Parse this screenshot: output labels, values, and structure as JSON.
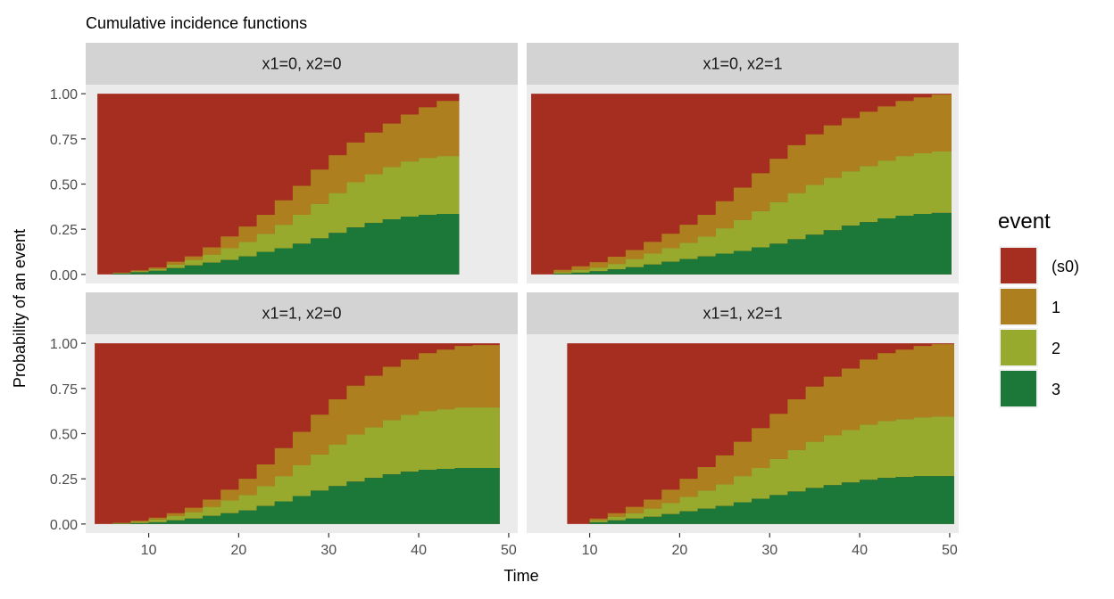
{
  "chart_data": {
    "type": "area",
    "stacked": true,
    "title": "Cumulative incidence functions",
    "xlabel": "Time",
    "ylabel": "Probability of an event",
    "xlim": [
      3,
      51
    ],
    "ylim": [
      -0.05,
      1.05
    ],
    "x_ticks": [
      10,
      20,
      30,
      40,
      50
    ],
    "y_ticks": [
      0,
      0.25,
      0.5,
      0.75,
      1
    ],
    "y_tick_labels": [
      "0.00",
      "0.25",
      "0.50",
      "0.75",
      "1.00"
    ],
    "grid": false,
    "legend": {
      "title": "event",
      "position": "right",
      "items": [
        {
          "label": "(s0)",
          "color": "#A52E20"
        },
        {
          "label": "1",
          "color": "#AD7F1E"
        },
        {
          "label": "2",
          "color": "#98AA2E"
        },
        {
          "label": "3",
          "color": "#1C7838"
        }
      ]
    },
    "stack_order_top_to_bottom": [
      "(s0)",
      "1",
      "2",
      "3"
    ],
    "panels": [
      {
        "label": "x1=0, x2=0",
        "x": [
          4.3,
          6,
          8,
          10,
          12,
          14,
          16,
          18,
          20,
          22,
          24,
          26,
          28,
          30,
          32,
          34,
          36,
          38,
          40,
          42,
          44.5
        ],
        "series": [
          {
            "name": "3",
            "values": [
              0,
              0.005,
              0.012,
              0.02,
              0.035,
              0.05,
              0.065,
              0.08,
              0.1,
              0.125,
              0.145,
              0.17,
              0.2,
              0.23,
              0.26,
              0.285,
              0.305,
              0.32,
              0.33,
              0.335,
              0.34
            ]
          },
          {
            "name": "2",
            "values": [
              0,
              0.003,
              0.006,
              0.01,
              0.02,
              0.03,
              0.045,
              0.065,
              0.08,
              0.1,
              0.13,
              0.16,
              0.19,
              0.22,
              0.25,
              0.27,
              0.29,
              0.305,
              0.315,
              0.32,
              0.33
            ]
          },
          {
            "name": "1",
            "values": [
              0,
              0.002,
              0.004,
              0.008,
              0.015,
              0.02,
              0.04,
              0.065,
              0.085,
              0.105,
              0.135,
              0.16,
              0.19,
              0.21,
              0.22,
              0.23,
              0.24,
              0.26,
              0.28,
              0.305,
              0.32
            ]
          }
        ]
      },
      {
        "label": "x1=0, x2=1",
        "x": [
          3.5,
          6,
          8,
          10,
          12,
          14,
          16,
          18,
          20,
          22,
          24,
          26,
          28,
          30,
          32,
          34,
          36,
          38,
          40,
          42,
          44,
          46,
          48,
          50.2
        ],
        "series": [
          {
            "name": "3",
            "values": [
              0,
              0.005,
              0.01,
              0.018,
              0.028,
              0.04,
              0.055,
              0.07,
              0.085,
              0.1,
              0.115,
              0.13,
              0.15,
              0.17,
              0.195,
              0.22,
              0.245,
              0.27,
              0.29,
              0.31,
              0.325,
              0.335,
              0.34,
              0.34
            ]
          },
          {
            "name": "2",
            "values": [
              0,
              0.008,
              0.015,
              0.02,
              0.03,
              0.045,
              0.06,
              0.075,
              0.09,
              0.11,
              0.14,
              0.17,
              0.2,
              0.23,
              0.255,
              0.275,
              0.29,
              0.3,
              0.31,
              0.32,
              0.33,
              0.335,
              0.34,
              0.34
            ]
          },
          {
            "name": "1",
            "values": [
              0,
              0.012,
              0.02,
              0.03,
              0.04,
              0.05,
              0.065,
              0.08,
              0.1,
              0.12,
              0.15,
              0.18,
              0.21,
              0.24,
              0.265,
              0.28,
              0.29,
              0.295,
              0.3,
              0.3,
              0.305,
              0.31,
              0.315,
              0.32
            ]
          }
        ]
      },
      {
        "label": "x1=1, x2=0",
        "x": [
          4,
          6,
          8,
          10,
          12,
          14,
          16,
          18,
          20,
          22,
          24,
          26,
          28,
          30,
          32,
          34,
          36,
          38,
          40,
          42,
          44,
          46,
          49
        ],
        "series": [
          {
            "name": "3",
            "values": [
              0,
              0.002,
              0.005,
              0.01,
              0.02,
              0.03,
              0.045,
              0.06,
              0.075,
              0.1,
              0.125,
              0.155,
              0.185,
              0.21,
              0.235,
              0.255,
              0.275,
              0.29,
              0.3,
              0.305,
              0.31,
              0.31,
              0.31
            ]
          },
          {
            "name": "2",
            "values": [
              0,
              0.003,
              0.008,
              0.015,
              0.025,
              0.035,
              0.05,
              0.07,
              0.085,
              0.11,
              0.14,
              0.17,
              0.2,
              0.23,
              0.26,
              0.28,
              0.3,
              0.315,
              0.325,
              0.33,
              0.335,
              0.335,
              0.335
            ]
          },
          {
            "name": "1",
            "values": [
              0,
              0.002,
              0.005,
              0.01,
              0.015,
              0.025,
              0.04,
              0.06,
              0.09,
              0.12,
              0.155,
              0.185,
              0.22,
              0.25,
              0.27,
              0.285,
              0.295,
              0.305,
              0.32,
              0.33,
              0.34,
              0.345,
              0.355
            ]
          }
        ]
      },
      {
        "label": "x1=1, x2=1",
        "x": [
          7.5,
          10,
          12,
          14,
          16,
          18,
          20,
          22,
          24,
          26,
          28,
          30,
          32,
          34,
          36,
          38,
          40,
          42,
          44,
          46,
          48,
          50.5
        ],
        "series": [
          {
            "name": "3",
            "values": [
              0,
              0.01,
              0.02,
              0.03,
              0.04,
              0.055,
              0.07,
              0.085,
              0.1,
              0.12,
              0.14,
              0.16,
              0.18,
              0.2,
              0.215,
              0.23,
              0.245,
              0.255,
              0.26,
              0.265,
              0.265,
              0.265
            ]
          },
          {
            "name": "2",
            "values": [
              0,
              0.01,
              0.02,
              0.03,
              0.045,
              0.06,
              0.08,
              0.1,
              0.12,
              0.145,
              0.17,
              0.2,
              0.23,
              0.255,
              0.275,
              0.29,
              0.305,
              0.315,
              0.32,
              0.325,
              0.33,
              0.33
            ]
          },
          {
            "name": "1",
            "values": [
              0,
              0.01,
              0.02,
              0.035,
              0.05,
              0.075,
              0.1,
              0.13,
              0.16,
              0.19,
              0.22,
              0.25,
              0.28,
              0.305,
              0.325,
              0.34,
              0.36,
              0.375,
              0.385,
              0.395,
              0.4,
              0.405
            ]
          }
        ]
      }
    ]
  }
}
